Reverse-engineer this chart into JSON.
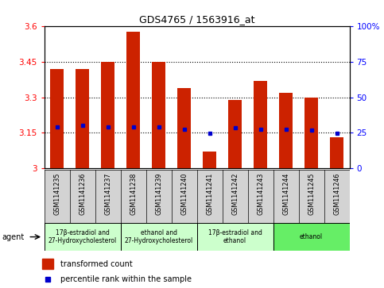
{
  "title": "GDS4765 / 1563916_at",
  "samples": [
    "GSM1141235",
    "GSM1141236",
    "GSM1141237",
    "GSM1141238",
    "GSM1141239",
    "GSM1141240",
    "GSM1141241",
    "GSM1141242",
    "GSM1141243",
    "GSM1141244",
    "GSM1141245",
    "GSM1141246"
  ],
  "bar_values": [
    3.42,
    3.42,
    3.45,
    3.575,
    3.45,
    3.34,
    3.07,
    3.29,
    3.37,
    3.32,
    3.3,
    3.13
  ],
  "blue_values": [
    3.175,
    3.18,
    3.175,
    3.175,
    3.175,
    3.165,
    3.148,
    3.17,
    3.165,
    3.165,
    3.16,
    3.148
  ],
  "bar_color": "#cc2200",
  "blue_color": "#0000cc",
  "ymin": 3.0,
  "ymax": 3.6,
  "yticks_left": [
    3.0,
    3.15,
    3.3,
    3.45,
    3.6
  ],
  "yticks_left_labels": [
    "3",
    "3.15",
    "3.3",
    "3.45",
    "3.6"
  ],
  "yticks_right_labels": [
    "0",
    "25",
    "50",
    "75",
    "100%"
  ],
  "legend_bar_label": "transformed count",
  "legend_blue_label": "percentile rank within the sample",
  "bg_color": "#ffffff",
  "bar_width": 0.55,
  "agent_label": "agent",
  "groups": [
    {
      "start": 0,
      "end": 2,
      "label": "17β-estradiol and\n27-Hydroxycholesterol",
      "color": "#ccffcc"
    },
    {
      "start": 3,
      "end": 5,
      "label": "ethanol and\n27-Hydroxycholesterol",
      "color": "#ccffcc"
    },
    {
      "start": 6,
      "end": 8,
      "label": "17β-estradiol and\nethanol",
      "color": "#ccffcc"
    },
    {
      "start": 9,
      "end": 11,
      "label": "ethanol",
      "color": "#66ee66"
    }
  ]
}
